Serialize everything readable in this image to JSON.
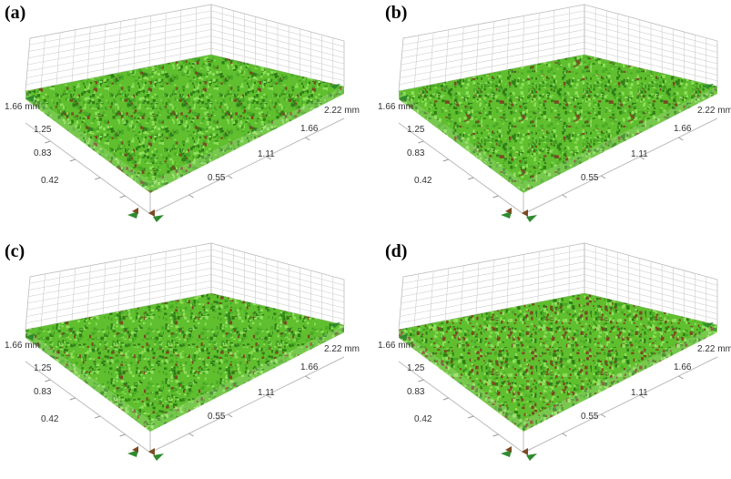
{
  "panels": [
    {
      "label": "(a)",
      "y_ticks": [
        "1.66 mm",
        "1.25",
        "0.83",
        "0.42"
      ],
      "x_ticks": [
        "0.55",
        "1.11",
        "1.66",
        "2.22 mm"
      ]
    },
    {
      "label": "(b)",
      "y_ticks": [
        "1.66 mm",
        "1.25",
        "0.83",
        "0.42"
      ],
      "x_ticks": [
        "0.55",
        "1.11",
        "1.66",
        "2.22 mm"
      ]
    },
    {
      "label": "(c)",
      "y_ticks": [
        "1.66 mm",
        "1.25",
        "0.83",
        "0.42"
      ],
      "x_ticks": [
        "0.55",
        "1.11",
        "1.66",
        "2.22 mm"
      ]
    },
    {
      "label": "(d)",
      "y_ticks": [
        "1.66 mm",
        "1.25",
        "0.83",
        "0.42"
      ],
      "x_ticks": [
        "0.55",
        "1.11",
        "1.66",
        "2.22 mm"
      ]
    }
  ]
}
